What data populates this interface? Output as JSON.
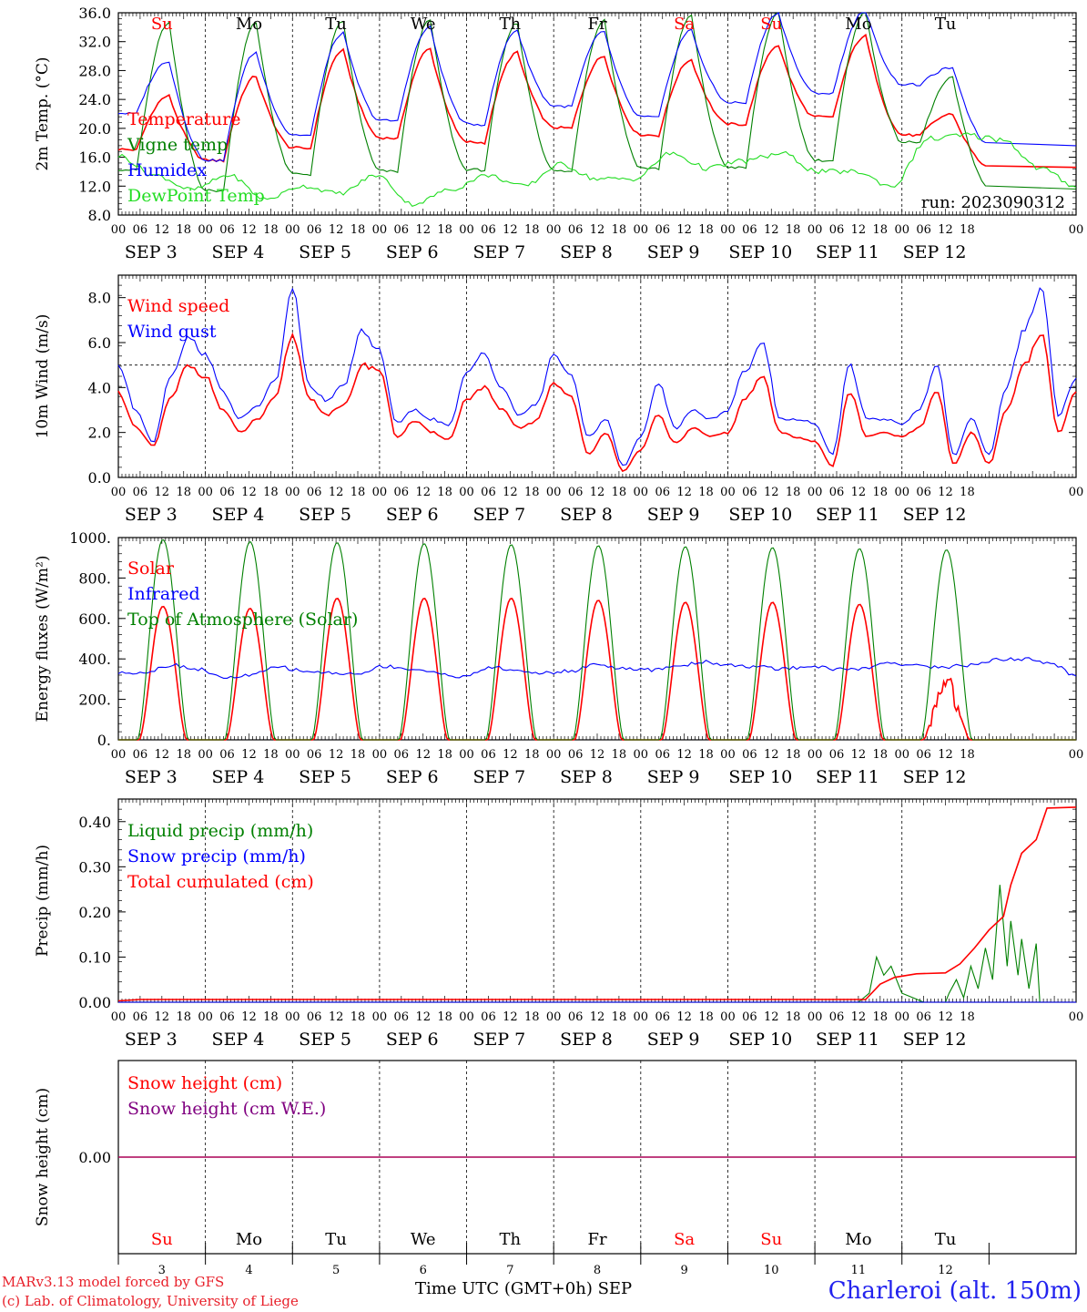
{
  "footer": {
    "model_line": "MARv3.13 model forced by GFS",
    "lab_line": "(c) Lab. of Climatology, University of Liege",
    "xaxis_title": "Time UTC (GMT+0h) SEP",
    "station": "Charleroi (alt. 150m)"
  },
  "colors": {
    "red": "#ff0000",
    "green": "#008000",
    "blue": "#0000ff",
    "lime": "#22dd22",
    "purple": "#800080"
  },
  "time_axis": {
    "days": [
      "3",
      "4",
      "5",
      "6",
      "7",
      "8",
      "9",
      "10",
      "11",
      "12"
    ],
    "date_labels": [
      "SEP  3",
      "SEP  4",
      "SEP  5",
      "SEP  6",
      "SEP  7",
      "SEP  8",
      "SEP  9",
      "SEP 10",
      "SEP 11",
      "SEP 12"
    ],
    "weekdays": [
      "Su",
      "Mo",
      "Tu",
      "We",
      "Th",
      "Fr",
      "Sa",
      "Su",
      "Mo",
      "Tu"
    ],
    "weekday_colors": [
      "red",
      "black",
      "black",
      "black",
      "black",
      "black",
      "red",
      "red",
      "black",
      "black"
    ],
    "hour_ticks": [
      "00",
      "06",
      "12",
      "18"
    ],
    "end_tick": "00"
  },
  "chart_data": [
    {
      "type": "line",
      "ylabel": "2m Temp. (°C)",
      "ylim": [
        8,
        36
      ],
      "yticks": [
        "8.0",
        "12.0",
        "16.0",
        "20.0",
        "24.0",
        "28.0",
        "32.0",
        "36.0"
      ],
      "show_weekdays": true,
      "annotation": "run: 2023090312",
      "legend": [
        "Temperature",
        "Vigne temp",
        "Humidex",
        "DewPoint Temp"
      ],
      "series": [
        {
          "name": "Temperature",
          "color": "red",
          "kind": "diurnal",
          "min": [
            17.0,
            15.5,
            17.2,
            18.6,
            18.0,
            20.0,
            19.0,
            20.5,
            21.5,
            19.0
          ],
          "max": [
            24.5,
            27.2,
            30.8,
            31.0,
            30.5,
            30.0,
            29.5,
            31.5,
            32.8,
            22.0
          ],
          "end": 14.6
        },
        {
          "name": "Vigne temp",
          "color": "green",
          "kind": "diurnal",
          "min": [
            14.2,
            11.3,
            13.6,
            14.0,
            14.2,
            14.0,
            14.4,
            14.5,
            15.5,
            18.0
          ],
          "max": [
            34.6,
            34.6,
            34.8,
            35.0,
            34.6,
            35.0,
            35.6,
            36.0,
            36.2,
            27.0
          ],
          "end": 11.6
        },
        {
          "name": "Humidex",
          "color": "blue",
          "kind": "diurnal",
          "min": [
            22.0,
            15.5,
            19.0,
            21.0,
            20.5,
            23.0,
            21.5,
            23.5,
            24.8,
            26.0
          ],
          "max": [
            29.3,
            30.5,
            33.2,
            34.0,
            33.6,
            33.4,
            33.6,
            36.0,
            36.3,
            28.4
          ],
          "end": 17.6
        },
        {
          "name": "DewPoint Temp",
          "color": "lime",
          "kind": "smooth",
          "values": [
            16.2,
            13.5,
            11.5,
            13.5,
            10.2,
            12.0,
            11.0,
            13.5,
            9.5,
            11.5,
            13.5,
            12.0,
            15.0,
            13.0,
            13.0,
            16.5,
            14.5,
            15.5,
            16.5,
            14.0,
            14.0,
            12.0,
            18.5,
            19.0,
            18.5,
            14.5,
            12.0
          ]
        }
      ]
    },
    {
      "type": "line",
      "ylabel": "10m Wind (m/s)",
      "ylim": [
        0,
        9
      ],
      "yticks": [
        "0.0",
        "2.0",
        "4.0",
        "6.0",
        "8.0"
      ],
      "ref_line": 5.0,
      "legend": [
        "Wind speed",
        "Wind gust"
      ],
      "series": [
        {
          "name": "Wind speed",
          "color": "red",
          "kind": "smooth",
          "values": [
            3.8,
            2.2,
            1.4,
            3.5,
            5.0,
            4.5,
            3.0,
            2.0,
            2.6,
            3.5,
            6.3,
            3.5,
            2.8,
            3.2,
            5.0,
            4.8,
            1.8,
            2.5,
            2.0,
            1.7,
            3.5,
            4.0,
            3.0,
            2.2,
            2.5,
            4.2,
            3.6,
            1.0,
            2.0,
            0.3,
            1.2,
            2.8,
            1.5,
            2.2,
            1.8,
            2.0,
            3.5,
            4.5,
            2.0,
            1.8,
            1.6,
            0.5,
            3.8,
            1.8,
            2.0,
            1.8,
            2.2,
            3.8,
            0.6,
            2.0,
            0.6,
            3.0,
            5.0,
            6.4,
            2.0,
            3.8
          ]
        },
        {
          "name": "Wind gust",
          "color": "blue",
          "kind": "smooth",
          "values": [
            5.0,
            3.0,
            1.6,
            4.5,
            6.2,
            5.5,
            3.8,
            2.6,
            3.2,
            4.3,
            8.3,
            4.0,
            3.4,
            4.2,
            6.5,
            5.6,
            2.4,
            3.0,
            2.6,
            2.3,
            4.6,
            5.6,
            4.0,
            2.8,
            3.2,
            5.5,
            4.5,
            1.8,
            2.6,
            0.5,
            1.8,
            4.2,
            2.2,
            3.0,
            2.6,
            3.0,
            4.8,
            6.0,
            2.6,
            2.6,
            2.4,
            1.0,
            5.0,
            2.6,
            2.6,
            2.4,
            3.0,
            5.0,
            1.0,
            2.6,
            1.0,
            4.0,
            6.5,
            8.4,
            2.8,
            4.4
          ]
        }
      ]
    },
    {
      "type": "line",
      "ylabel": "Energy fluxes (W/m²)",
      "ylim": [
        0,
        1000
      ],
      "yticks": [
        "0.",
        "200.",
        "400.",
        "600.",
        "800.",
        "1000."
      ],
      "legend": [
        "Solar",
        "Infrared",
        "Top of Atmosphere (Solar)"
      ],
      "series": [
        {
          "name": "Solar",
          "color": "red",
          "kind": "daybell",
          "peak": [
            660,
            650,
            700,
            700,
            700,
            690,
            680,
            680,
            670,
            270
          ],
          "halfwidth": 6.5
        },
        {
          "name": "Infrared",
          "color": "blue",
          "kind": "smooth",
          "values": [
            330,
            335,
            370,
            350,
            305,
            320,
            360,
            340,
            330,
            325,
            365,
            350,
            330,
            310,
            360,
            340,
            330,
            340,
            375,
            350,
            345,
            365,
            385,
            370,
            360,
            350,
            365,
            350,
            350,
            385,
            365,
            360,
            370,
            395,
            400,
            380,
            320
          ]
        },
        {
          "name": "Top of Atmosphere (Solar)",
          "color": "green",
          "kind": "daybell",
          "peak": [
            990,
            980,
            975,
            970,
            965,
            960,
            955,
            950,
            945,
            940
          ],
          "halfwidth": 7.0
        }
      ]
    },
    {
      "type": "line",
      "ylabel": "Precip (mm/h)",
      "ylim": [
        0,
        0.45
      ],
      "yticks": [
        "0.00",
        "0.10",
        "0.20",
        "0.30",
        "0.40"
      ],
      "legend": [
        "Liquid precip (mm/h)",
        "Snow precip (mm/h)",
        "Total cumulated (cm)"
      ],
      "series": [
        {
          "name": "Liquid precip (mm/h)",
          "color": "green",
          "kind": "points",
          "points": [
            [
              0,
              0
            ],
            [
              188,
              0
            ],
            [
              204,
              0
            ],
            [
              207,
              0.02
            ],
            [
              209,
              0.1
            ],
            [
              211,
              0.06
            ],
            [
              213,
              0.08
            ],
            [
              216,
              0.02
            ],
            [
              219,
              0.01
            ],
            [
              222,
              0
            ],
            [
              228,
              0
            ],
            [
              229,
              0.02
            ],
            [
              231,
              0.05
            ],
            [
              233,
              0.01
            ],
            [
              235,
              0.08
            ],
            [
              237,
              0.03
            ],
            [
              239,
              0.12
            ],
            [
              241,
              0.05
            ],
            [
              243,
              0.26
            ],
            [
              245,
              0.08
            ],
            [
              246,
              0.18
            ],
            [
              248,
              0.06
            ],
            [
              249,
              0.14
            ],
            [
              251,
              0.03
            ],
            [
              253,
              0.13
            ],
            [
              254,
              0
            ],
            [
              264,
              0
            ]
          ]
        },
        {
          "name": "Snow precip (mm/h)",
          "color": "blue",
          "kind": "points",
          "points": [
            [
              0,
              0
            ],
            [
              264,
              0
            ]
          ]
        },
        {
          "name": "Total cumulated (cm)",
          "color": "red",
          "kind": "points",
          "points": [
            [
              0,
              0.003
            ],
            [
              6,
              0.006
            ],
            [
              206,
              0.006
            ],
            [
              210,
              0.04
            ],
            [
              214,
              0.055
            ],
            [
              220,
              0.063
            ],
            [
              228,
              0.065
            ],
            [
              232,
              0.085
            ],
            [
              236,
              0.12
            ],
            [
              240,
              0.16
            ],
            [
              244,
              0.19
            ],
            [
              246,
              0.26
            ],
            [
              249,
              0.33
            ],
            [
              253,
              0.36
            ],
            [
              256,
              0.43
            ],
            [
              264,
              0.432
            ]
          ]
        }
      ]
    },
    {
      "type": "line",
      "ylabel": "Snow height (cm)",
      "ylim": [
        -1,
        1
      ],
      "yticks": [
        "0.00"
      ],
      "legend": [
        "Snow height (cm)",
        "Snow height (cm W.E.)"
      ],
      "show_weekdays_bottom": true,
      "series": [
        {
          "name": "Snow height (cm)",
          "color": "red",
          "kind": "points",
          "points": [
            [
              0,
              0
            ],
            [
              264,
              0
            ]
          ]
        },
        {
          "name": "Snow height (cm W.E.)",
          "color": "purple",
          "kind": "points",
          "points": [
            [
              0,
              0
            ],
            [
              264,
              0
            ]
          ]
        }
      ]
    }
  ]
}
